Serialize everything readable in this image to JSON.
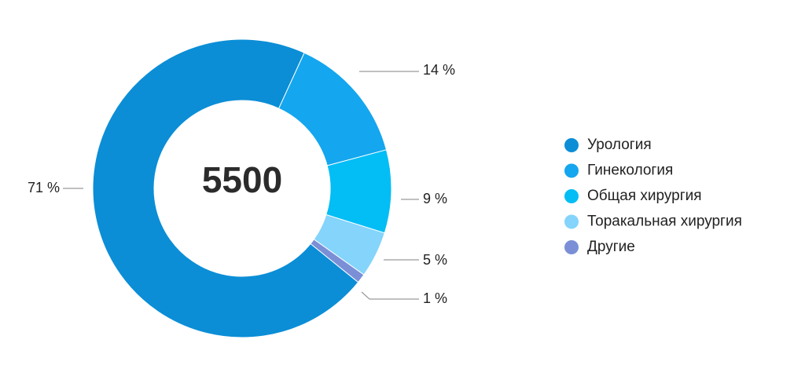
{
  "chart_data": {
    "type": "donut",
    "total": 5500,
    "series": [
      {
        "name": "Урология",
        "color": "#0b8ed6",
        "values": [
          71
        ],
        "value_labels": [
          "71 %"
        ]
      },
      {
        "name": "Гинекология",
        "color": "#14a6ee",
        "values": [
          14
        ],
        "value_labels": [
          "14 %"
        ]
      },
      {
        "name": "Общая хирургия",
        "color": "#03bdf5",
        "values": [
          9
        ],
        "value_labels": [
          "9 %"
        ]
      },
      {
        "name": "Торакальная хирургия",
        "color": "#84d4fb",
        "values": [
          5
        ],
        "value_labels": [
          "5 %"
        ]
      },
      {
        "name": "Другие",
        "color": "#7a8fd6",
        "values": [
          1
        ],
        "value_labels": [
          "1 %"
        ]
      }
    ]
  }
}
